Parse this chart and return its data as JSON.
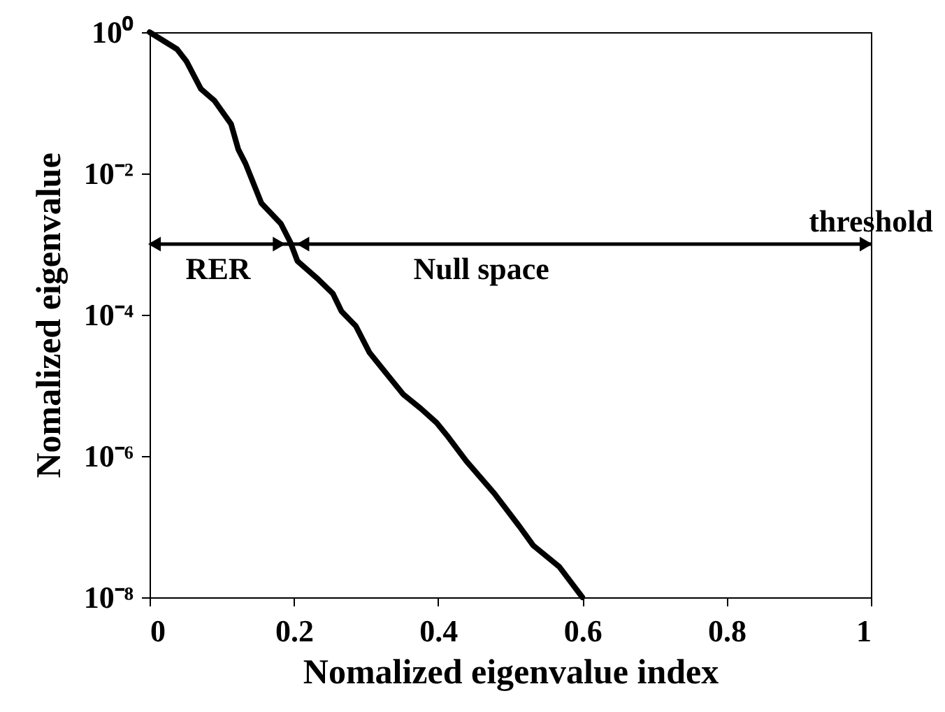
{
  "chart_data": {
    "type": "line",
    "xlabel": "Nomalized eigenvalue index",
    "ylabel": "Nomalized eigenvalue",
    "x": [
      0,
      0.038,
      0.051,
      0.071,
      0.09,
      0.113,
      0.123,
      0.133,
      0.155,
      0.182,
      0.195,
      0.205,
      0.234,
      0.254,
      0.266,
      0.286,
      0.305,
      0.33,
      0.352,
      0.376,
      0.398,
      0.414,
      0.439,
      0.478,
      0.513,
      0.532,
      0.568,
      0.6
    ],
    "series": [
      {
        "color": "#000000",
        "values": [
          1,
          0.575,
          0.389,
          0.158,
          0.107,
          0.0501,
          0.0219,
          0.0138,
          0.0038,
          0.00195,
          0.00107,
          0.000575,
          0.000316,
          0.0002,
          0.000112,
          6.9e-05,
          2.9e-05,
          1.4e-05,
          7.4e-06,
          4.7e-06,
          2.95e-06,
          1.86e-06,
          8.5e-07,
          2.95e-07,
          1e-07,
          5.4e-08,
          2.7e-08,
          1e-08
        ]
      }
    ],
    "log": "y",
    "xlim": [
      0,
      1
    ],
    "xticks": [
      0,
      0.2,
      0.4,
      0.6,
      0.8,
      1
    ],
    "ylim": [
      1e-08,
      1
    ],
    "yticks": [
      {
        "value": 1e-08,
        "label": "10⁻⁸"
      },
      {
        "value": 1e-06,
        "label": "10⁻⁶"
      },
      {
        "value": 0.0001,
        "label": "10⁻⁴"
      },
      {
        "value": 0.01,
        "label": "10⁻²"
      },
      {
        "value": 1,
        "label": "10⁰"
      }
    ],
    "grid": false,
    "line_style": "solid",
    "marker": "none",
    "ref_lines": [
      {
        "axis": "y",
        "value": 0.001,
        "label": "threshold",
        "color": "#000000"
      }
    ],
    "annotations": [
      {
        "text": "RER",
        "x": 0.095,
        "y": 0.001
      },
      {
        "text": "Null space",
        "x": 0.46,
        "y": 0.001
      }
    ]
  }
}
